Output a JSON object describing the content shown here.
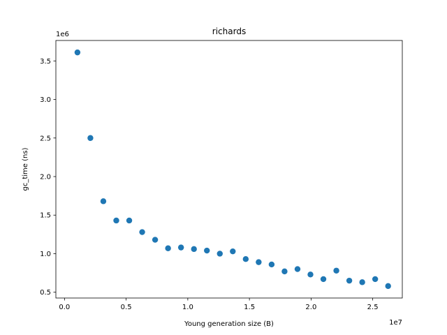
{
  "chart_data": {
    "type": "scatter",
    "title": "richards",
    "xlabel": "Young generation size (B)",
    "ylabel": "gc_time (ns)",
    "x_offset_label": "1e7",
    "y_offset_label": "1e6",
    "xlim": [
      -0.07,
      2.74
    ],
    "ylim": [
      0.425,
      3.765
    ],
    "x_ticks": [
      0.0,
      0.5,
      1.0,
      1.5,
      2.0,
      2.5
    ],
    "x_tick_labels": [
      "0.0",
      "0.5",
      "1.0",
      "1.5",
      "2.0",
      "2.5"
    ],
    "y_ticks": [
      0.5,
      1.0,
      1.5,
      2.0,
      2.5,
      3.0,
      3.5
    ],
    "y_tick_labels": [
      "0.5",
      "1.0",
      "1.5",
      "2.0",
      "2.5",
      "3.0",
      "3.5"
    ],
    "grid": false,
    "marker_color": "#1f77b4",
    "series": [
      {
        "x": [
          0.105,
          0.21,
          0.315,
          0.42,
          0.525,
          0.63,
          0.735,
          0.84,
          0.945,
          1.05,
          1.155,
          1.26,
          1.365,
          1.47,
          1.575,
          1.68,
          1.785,
          1.89,
          1.995,
          2.1,
          2.205,
          2.31,
          2.415,
          2.52,
          2.625
        ],
        "y": [
          3.61,
          2.5,
          1.68,
          1.43,
          1.43,
          1.28,
          1.18,
          1.07,
          1.08,
          1.06,
          1.04,
          1.0,
          1.03,
          0.93,
          0.89,
          0.86,
          0.77,
          0.8,
          0.73,
          0.67,
          0.78,
          0.65,
          0.63,
          0.67,
          0.58
        ]
      }
    ]
  }
}
